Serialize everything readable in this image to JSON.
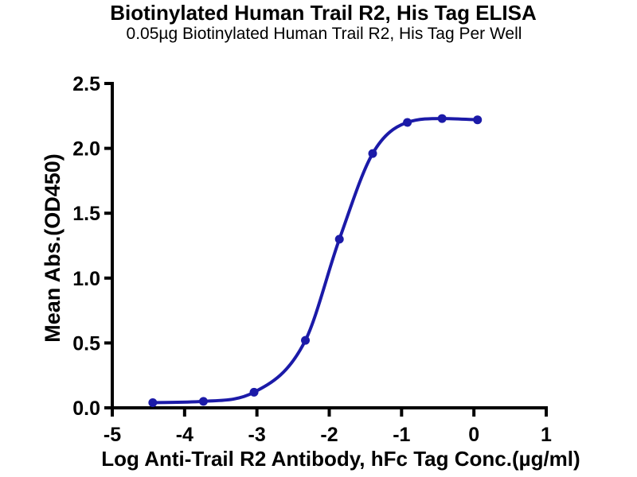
{
  "page": {
    "background": "#ffffff"
  },
  "chart_data": {
    "type": "scatter",
    "curve_fit": "4PL sigmoidal ELISA binding curve through points",
    "title": "Biotinylated Human Trail R2, His Tag ELISA",
    "subtitle": "0.05µg Biotinylated Human Trail R2, His Tag Per Well",
    "xlabel": "Log Anti-Trail R2 Antibody, hFc Tag Conc.(µg/ml)",
    "ylabel": "Mean Abs.(OD450)",
    "xlim": [
      -5,
      1
    ],
    "ylim": [
      0,
      2.5
    ],
    "x_ticks": [
      -5,
      -4,
      -3,
      -2,
      -1,
      0,
      1
    ],
    "x_tick_labels": [
      "-5",
      "-4",
      "-3",
      "-2",
      "-1",
      "0",
      "1"
    ],
    "y_ticks": [
      0,
      0.5,
      1,
      1.5,
      2,
      2.5
    ],
    "y_tick_labels": [
      "0.0",
      "0.5",
      "1.0",
      "1.5",
      "2.0",
      "2.5"
    ],
    "grid": false,
    "legend": "none",
    "axis_color": "#000000",
    "series": [
      {
        "name": "Anti-Trail R2 Antibody, hFc Tag",
        "color": "#1b1aa8",
        "marker": "circle",
        "points": [
          {
            "x": -4.44,
            "y": 0.04
          },
          {
            "x": -3.74,
            "y": 0.05
          },
          {
            "x": -3.04,
            "y": 0.12
          },
          {
            "x": -2.33,
            "y": 0.52
          },
          {
            "x": -1.86,
            "y": 1.3
          },
          {
            "x": -1.4,
            "y": 1.96
          },
          {
            "x": -0.92,
            "y": 2.2
          },
          {
            "x": -0.44,
            "y": 2.23
          },
          {
            "x": 0.05,
            "y": 2.22
          }
        ]
      }
    ]
  }
}
